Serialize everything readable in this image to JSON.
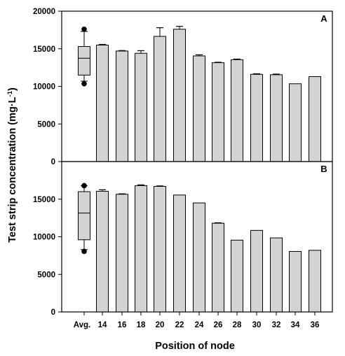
{
  "chart_data": [
    {
      "panel": "A",
      "type": "bar",
      "categories": [
        "Avg.",
        "14",
        "16",
        "18",
        "20",
        "22",
        "24",
        "26",
        "28",
        "30",
        "32",
        "34",
        "36"
      ],
      "values": [
        null,
        15500,
        14700,
        14400,
        16650,
        17600,
        14050,
        13150,
        13550,
        11600,
        11550,
        10350,
        11300
      ],
      "errors": [
        null,
        80,
        60,
        350,
        1150,
        380,
        150,
        60,
        80,
        80,
        80,
        0,
        0
      ],
      "boxplot": {
        "category": "Avg.",
        "whisker_low": 10700,
        "q1": 11500,
        "median": 13750,
        "q3": 15300,
        "whisker_high": 17300,
        "outliers": [
          10350,
          17600
        ]
      },
      "yticks": [
        0,
        5000,
        10000,
        15000,
        20000
      ],
      "ylim": [
        0,
        20000
      ]
    },
    {
      "panel": "B",
      "type": "bar",
      "categories": [
        "Avg.",
        "14",
        "16",
        "18",
        "20",
        "22",
        "24",
        "26",
        "28",
        "30",
        "32",
        "34",
        "36"
      ],
      "values": [
        null,
        16050,
        15650,
        16800,
        16700,
        15550,
        14500,
        11800,
        9550,
        10850,
        9850,
        8050,
        8200
      ],
      "errors": [
        null,
        200,
        60,
        100,
        60,
        0,
        0,
        60,
        0,
        0,
        0,
        0,
        0
      ],
      "boxplot": {
        "category": "Avg.",
        "whisker_low": 8300,
        "q1": 9600,
        "median": 13150,
        "q3": 16000,
        "whisker_high": 16800,
        "outliers": [
          8050,
          16800
        ]
      },
      "yticks": [
        0,
        5000,
        10000,
        15000
      ],
      "ylim": [
        0,
        20000
      ]
    }
  ],
  "axes": {
    "ylabel": "Test strip concentration (mg·L",
    "ylabel_sup": "-1",
    "ylabel_close": ")",
    "xlabel": "Position of node"
  },
  "colors": {
    "bar_fill": "#d3d3d3",
    "stroke": "#000000",
    "background": "#ffffff"
  }
}
